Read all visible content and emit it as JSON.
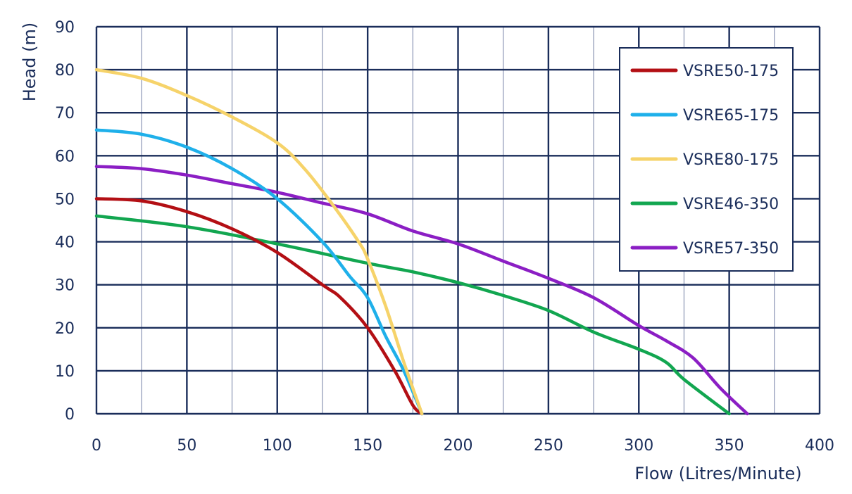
{
  "chart_data": {
    "type": "line",
    "xlabel": "Flow (Litres/Minute)",
    "ylabel": "Head (m)",
    "xlim": [
      0,
      400
    ],
    "ylim": [
      0,
      90
    ],
    "xticks": [
      0,
      50,
      100,
      150,
      200,
      250,
      300,
      350,
      400
    ],
    "yticks": [
      0,
      10,
      20,
      30,
      40,
      50,
      60,
      70,
      80,
      90
    ],
    "grid": true,
    "legend_position": "top-right",
    "colors": {
      "grid_major": "#1a2d5a",
      "grid_minor": "#8a94b3",
      "text": "#1a2d5a"
    },
    "series": [
      {
        "name": "VSRE50-175",
        "color": "#b30f14",
        "points": [
          [
            0,
            50
          ],
          [
            25,
            49.5
          ],
          [
            50,
            47
          ],
          [
            75,
            43
          ],
          [
            100,
            37.5
          ],
          [
            125,
            30
          ],
          [
            135,
            27
          ],
          [
            150,
            20
          ],
          [
            165,
            10
          ],
          [
            175,
            2
          ],
          [
            180,
            0
          ]
        ]
      },
      {
        "name": "VSRE65-175",
        "color": "#1fb0ea",
        "points": [
          [
            0,
            66
          ],
          [
            25,
            65
          ],
          [
            50,
            62
          ],
          [
            75,
            57
          ],
          [
            100,
            50
          ],
          [
            125,
            40
          ],
          [
            140,
            32
          ],
          [
            150,
            27
          ],
          [
            160,
            18
          ],
          [
            170,
            10
          ],
          [
            180,
            0
          ]
        ]
      },
      {
        "name": "VSRE80-175",
        "color": "#f6d36a",
        "points": [
          [
            0,
            80
          ],
          [
            25,
            78
          ],
          [
            50,
            74
          ],
          [
            75,
            69
          ],
          [
            100,
            63
          ],
          [
            115,
            57
          ],
          [
            130,
            49
          ],
          [
            145,
            40
          ],
          [
            150,
            36
          ],
          [
            160,
            25
          ],
          [
            170,
            12
          ],
          [
            180,
            0
          ]
        ]
      },
      {
        "name": "VSRE46-350",
        "color": "#12a650",
        "points": [
          [
            0,
            46
          ],
          [
            50,
            43.5
          ],
          [
            100,
            39.5
          ],
          [
            150,
            35
          ],
          [
            175,
            33
          ],
          [
            200,
            30.5
          ],
          [
            225,
            27.5
          ],
          [
            250,
            24
          ],
          [
            275,
            19
          ],
          [
            300,
            15
          ],
          [
            315,
            12
          ],
          [
            325,
            8
          ],
          [
            350,
            0
          ]
        ]
      },
      {
        "name": "VSRE57-350",
        "color": "#8b1ec4",
        "points": [
          [
            0,
            57.5
          ],
          [
            25,
            57
          ],
          [
            50,
            55.5
          ],
          [
            75,
            53.5
          ],
          [
            100,
            51.5
          ],
          [
            125,
            49
          ],
          [
            150,
            46.5
          ],
          [
            175,
            42.5
          ],
          [
            200,
            39.5
          ],
          [
            225,
            35.5
          ],
          [
            250,
            31.5
          ],
          [
            275,
            27
          ],
          [
            300,
            20.5
          ],
          [
            315,
            17
          ],
          [
            330,
            13
          ],
          [
            345,
            6
          ],
          [
            360,
            0
          ]
        ]
      }
    ]
  }
}
